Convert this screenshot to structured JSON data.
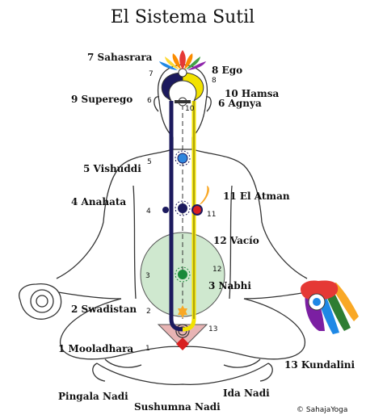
{
  "title": "El Sistema Sutil",
  "copyright": "© SahajaYoga",
  "labels": {
    "sahasrara": {
      "num": "7",
      "name": "Sahasrara"
    },
    "ego": {
      "num": "8",
      "name": "Ego"
    },
    "superego": {
      "num": "9",
      "name": "Superego"
    },
    "hamsa": {
      "num": "10",
      "name": "Hamsa"
    },
    "agnya": {
      "num": "6",
      "name": "Agnya"
    },
    "vishuddi": {
      "num": "5",
      "name": "Vishuddi"
    },
    "anahata": {
      "num": "4",
      "name": "Anahata"
    },
    "atman": {
      "num": "11",
      "name": "El Atman"
    },
    "vacio": {
      "num": "12",
      "name": "Vacío"
    },
    "nabhi": {
      "num": "3",
      "name": "Nabhi"
    },
    "swadistan": {
      "num": "2",
      "name": "Swadistan"
    },
    "mooladhara": {
      "num": "1",
      "name": "Mooladhara"
    },
    "kundalini": {
      "num": "13",
      "name": "Kundalini"
    }
  },
  "nadis": {
    "pingala": "Pingala Nadi",
    "sushumna": "Sushumna Nadi",
    "ida": "Ida Nadi"
  },
  "small_numbers": {
    "n7": "7",
    "n8": "8",
    "n6": "6",
    "n10": "10",
    "n5": "5",
    "n4": "4",
    "n11": "11",
    "n3": "3",
    "n12": "12",
    "n2": "2",
    "n13": "13",
    "n1": "1"
  },
  "colors": {
    "ida_channel": "#1c1a5e",
    "pingala_channel": "#f2e200",
    "void_fill": "#cfe8cf",
    "mooladhara_triangle": "#e8b4b4",
    "chakra_red": "#d81f1f",
    "chakra_blue": "#2e86de",
    "chakra_green": "#1a8a3a",
    "chakra_navy": "#1c1a5e"
  }
}
